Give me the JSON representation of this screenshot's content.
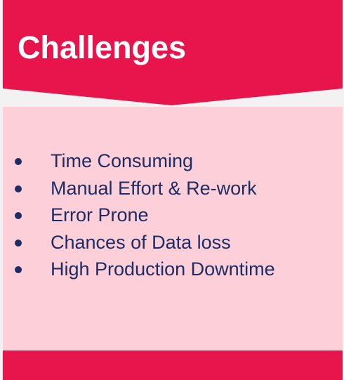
{
  "header": {
    "title": "Challenges"
  },
  "challenges": {
    "items": [
      "Time Consuming",
      "Manual Effort & Re-work",
      "Error Prone",
      "Chances of Data loss",
      "High Production Downtime"
    ]
  },
  "colors": {
    "accent": "#e8154d",
    "panel": "#fccfd9",
    "text": "#1e2c63",
    "background": "#f2f2f2"
  }
}
